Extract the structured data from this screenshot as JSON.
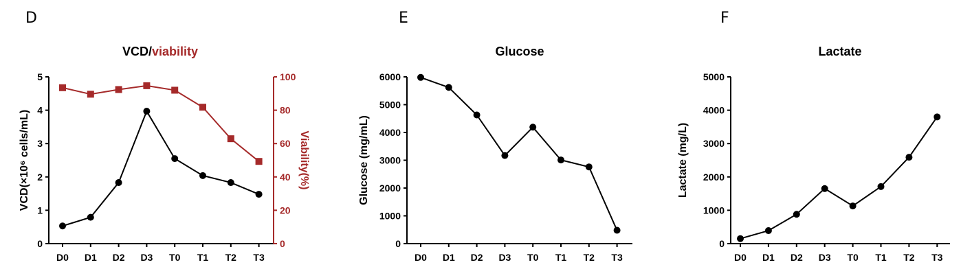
{
  "panels": {
    "d": "D",
    "e": "E",
    "f": "F"
  },
  "colors": {
    "primary": "#000000",
    "secondary": "#a52a2a"
  },
  "chart_data": [
    {
      "type": "line",
      "title_parts": [
        "VCD/",
        "viability"
      ],
      "xlabel": "",
      "ylabel": "VCD(×10⁶ cells/mL)",
      "y2label": "Viability(%)",
      "categories": [
        "D0",
        "D1",
        "D2",
        "D3",
        "T0",
        "T1",
        "T2",
        "T3"
      ],
      "ylim": [
        0,
        5
      ],
      "yticks": [
        0,
        1,
        2,
        3,
        4,
        5
      ],
      "y2lim": [
        0,
        100
      ],
      "y2ticks": [
        0,
        20,
        40,
        60,
        80,
        100
      ],
      "series": [
        {
          "values": [
            0.53,
            0.79,
            1.83,
            3.97,
            2.55,
            2.04,
            1.83,
            1.48
          ],
          "axis": "left",
          "marker": "circle",
          "color": "#000000"
        },
        {
          "values": [
            93.5,
            89.6,
            92.4,
            94.7,
            92.0,
            81.8,
            62.9,
            49.3
          ],
          "axis": "right",
          "marker": "square",
          "color": "#a52a2a"
        }
      ],
      "grid": false
    },
    {
      "type": "line",
      "title": "Glucose",
      "xlabel": "",
      "ylabel": "Glucose (mg/mL)",
      "categories": [
        "D0",
        "D1",
        "D2",
        "D3",
        "T0",
        "T1",
        "T2",
        "T3"
      ],
      "ylim": [
        0,
        6000
      ],
      "yticks": [
        0,
        1000,
        2000,
        3000,
        4000,
        5000,
        6000
      ],
      "series": [
        {
          "values": [
            5980,
            5620,
            4630,
            3170,
            4190,
            3010,
            2760,
            480
          ],
          "marker": "circle",
          "color": "#000000"
        }
      ],
      "grid": false
    },
    {
      "type": "line",
      "title": "Lactate",
      "xlabel": "",
      "ylabel": "Lactate (mg/L)",
      "categories": [
        "D0",
        "D1",
        "D2",
        "D3",
        "T0",
        "T1",
        "T2",
        "T3"
      ],
      "ylim": [
        0,
        5000
      ],
      "yticks": [
        0,
        1000,
        2000,
        3000,
        4000,
        5000
      ],
      "series": [
        {
          "values": [
            150,
            390,
            880,
            1650,
            1130,
            1710,
            2590,
            3800
          ],
          "marker": "circle",
          "color": "#000000"
        }
      ],
      "grid": false
    }
  ]
}
